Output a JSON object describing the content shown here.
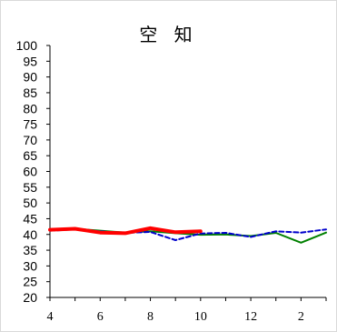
{
  "chart_data": {
    "type": "line",
    "title": "空 知",
    "xlabel": "",
    "ylabel": "",
    "ylim": [
      20,
      100
    ],
    "yticks": [
      20,
      25,
      30,
      35,
      40,
      45,
      50,
      55,
      60,
      65,
      70,
      75,
      80,
      85,
      90,
      95,
      100
    ],
    "x_tick_labels": [
      "4",
      "6",
      "8",
      "10",
      "12",
      "2"
    ],
    "months": [
      "4",
      "5",
      "6",
      "7",
      "8",
      "9",
      "10",
      "11",
      "12",
      "1",
      "2",
      "3"
    ],
    "grid": false,
    "legend": "none",
    "series": [
      {
        "color": "#ff0000",
        "style": "solid-thick",
        "values": [
          41.5,
          41.8,
          40.6,
          40.4,
          42.0,
          40.7,
          41.0,
          null,
          null,
          null,
          null,
          null
        ]
      },
      {
        "color": "#0000cc",
        "style": "dashed",
        "values": [
          41.2,
          41.6,
          41.0,
          40.5,
          40.8,
          38.2,
          40.3,
          40.5,
          39.2,
          41.0,
          40.6,
          41.6
        ]
      },
      {
        "color": "#008000",
        "style": "solid",
        "values": [
          41.6,
          41.8,
          41.2,
          40.6,
          41.0,
          40.4,
          39.9,
          40.0,
          39.5,
          40.5,
          37.4,
          40.6
        ]
      }
    ]
  }
}
